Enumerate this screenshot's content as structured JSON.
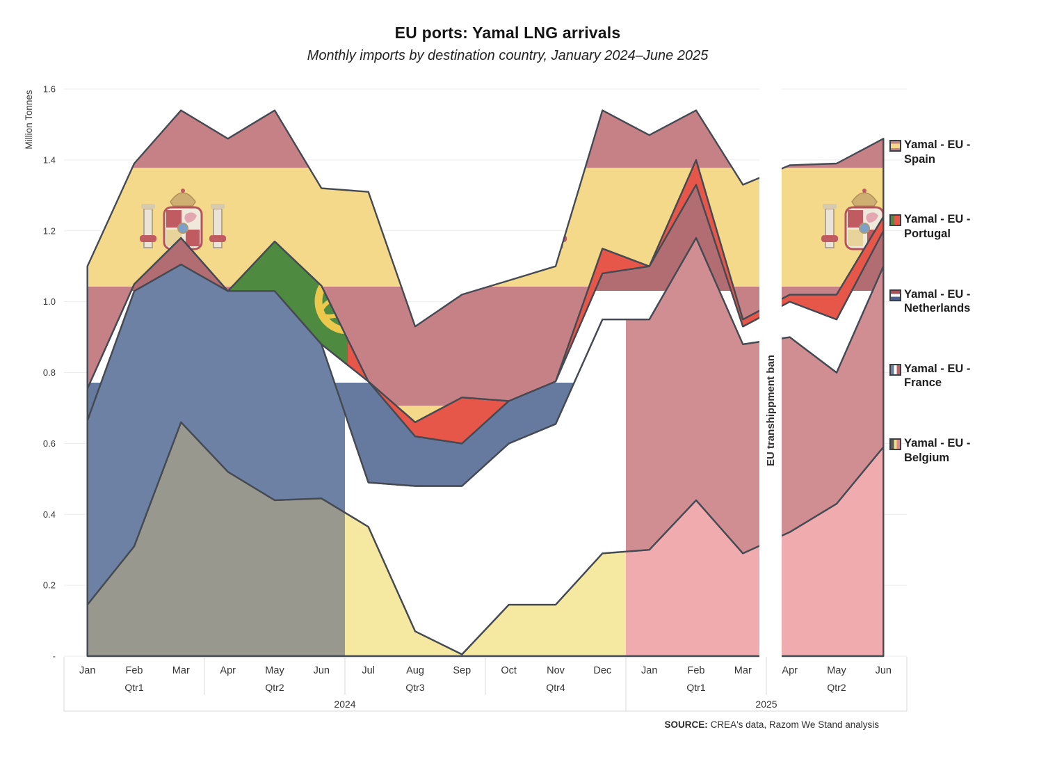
{
  "title": "EU ports: Yamal LNG arrivals",
  "subtitle": "Monthly imports by destination country, January 2024–June 2025",
  "source": {
    "prefix": "SOURCE:",
    "text": " CREA's data, Razom We Stand analysis"
  },
  "annotation": {
    "label": "EU transhippment ban"
  },
  "chart_data": {
    "type": "area",
    "stacked": true,
    "title": "EU ports: Yamal LNG arrivals",
    "xlabel": "",
    "ylabel": "Million Tonnes",
    "ylim": [
      0,
      1.6
    ],
    "grid": true,
    "legend_position": "right",
    "yticks": [
      {
        "value": 1.6,
        "label": "1.6"
      },
      {
        "value": 1.4,
        "label": "1.4"
      },
      {
        "value": 1.2,
        "label": "1.2"
      },
      {
        "value": 1.0,
        "label": "1.0"
      },
      {
        "value": 0.8,
        "label": "0.8"
      },
      {
        "value": 0.6,
        "label": "0.6"
      },
      {
        "value": 0.4,
        "label": "0.4"
      },
      {
        "value": 0.2,
        "label": "0.2"
      },
      {
        "value": 0.0,
        "label": "-"
      }
    ],
    "categories": [
      "Jan",
      "Feb",
      "Mar",
      "Apr",
      "May",
      "Jun",
      "Jul",
      "Aug",
      "Sep",
      "Oct",
      "Nov",
      "Dec",
      "Jan",
      "Feb",
      "Mar",
      "Apr",
      "May",
      "Jun"
    ],
    "quarters": [
      {
        "label": "Qtr1",
        "start": 0,
        "end": 2
      },
      {
        "label": "Qtr2",
        "start": 3,
        "end": 5
      },
      {
        "label": "Qtr3",
        "start": 6,
        "end": 8
      },
      {
        "label": "Qtr4",
        "start": 9,
        "end": 11
      },
      {
        "label": "Qtr1",
        "start": 12,
        "end": 14
      },
      {
        "label": "Qtr2",
        "start": 15,
        "end": 17
      }
    ],
    "years": [
      {
        "label": "2024",
        "start": 0,
        "end": 11
      },
      {
        "label": "2025",
        "start": 12,
        "end": 17
      }
    ],
    "series": [
      {
        "name": "Yamal - EU - Belgium",
        "key": "belgium",
        "values": [
          0.145,
          0.31,
          0.66,
          0.52,
          0.44,
          0.445,
          0.365,
          0.07,
          0.005,
          0.145,
          0.145,
          0.29,
          0.3,
          0.44,
          0.29,
          0.35,
          0.43,
          0.59
        ]
      },
      {
        "name": "Yamal - EU - France",
        "key": "france",
        "values": [
          0.52,
          0.72,
          0.445,
          0.51,
          0.59,
          0.435,
          0.125,
          0.41,
          0.475,
          0.455,
          0.51,
          0.66,
          0.65,
          0.74,
          0.59,
          0.55,
          0.37,
          0.51
        ]
      },
      {
        "name": "Yamal - EU - Netherlands",
        "key": "netherlands",
        "values": [
          0.09,
          0.02,
          0.075,
          0,
          0,
          0,
          0.285,
          0.14,
          0.12,
          0.12,
          0.12,
          0.13,
          0.15,
          0.15,
          0.05,
          0.1,
          0.15,
          0.1
        ]
      },
      {
        "name": "Yamal - EU - Portugal",
        "key": "portugal",
        "values": [
          0,
          0,
          0,
          0,
          0.14,
          0.165,
          0,
          0.04,
          0.13,
          0,
          0,
          0.07,
          0,
          0.07,
          0.02,
          0.02,
          0.07,
          0.04
        ]
      },
      {
        "name": "Yamal - EU - Spain",
        "key": "spain",
        "values": [
          0.345,
          0.34,
          0.36,
          0.43,
          0.37,
          0.275,
          0.535,
          0.27,
          0.29,
          0.34,
          0.325,
          0.39,
          0.37,
          0.14,
          0.38,
          0.365,
          0.37,
          0.22
        ]
      }
    ],
    "legend": [
      {
        "label": "Yamal - EU - Spain",
        "key": "spain"
      },
      {
        "label": "Yamal - EU - Portugal",
        "key": "portugal"
      },
      {
        "label": "Yamal - EU - Netherlands",
        "key": "netherlands"
      },
      {
        "label": "Yamal - EU - France",
        "key": "france"
      },
      {
        "label": "Yamal - EU - Belgium",
        "key": "belgium"
      }
    ],
    "annotation_band": {
      "label": "EU transhippment ban",
      "between": [
        "Mar 2025",
        "Apr 2025"
      ]
    },
    "colors": {
      "spain_red": "#c68187",
      "spain_yellow": "#f5d98b",
      "portugal_green": "#4f8a41",
      "portugal_red": "#e6574a",
      "netherlands_red": "#b26d72",
      "netherlands_blue": "#66799f",
      "france_blue": "#6d81a4",
      "france_red": "#d08e93",
      "belgium_black": "#98988f",
      "belgium_yellow": "#f5e9a1",
      "belgium_red": "#efabad",
      "outline": "#454a52"
    }
  }
}
